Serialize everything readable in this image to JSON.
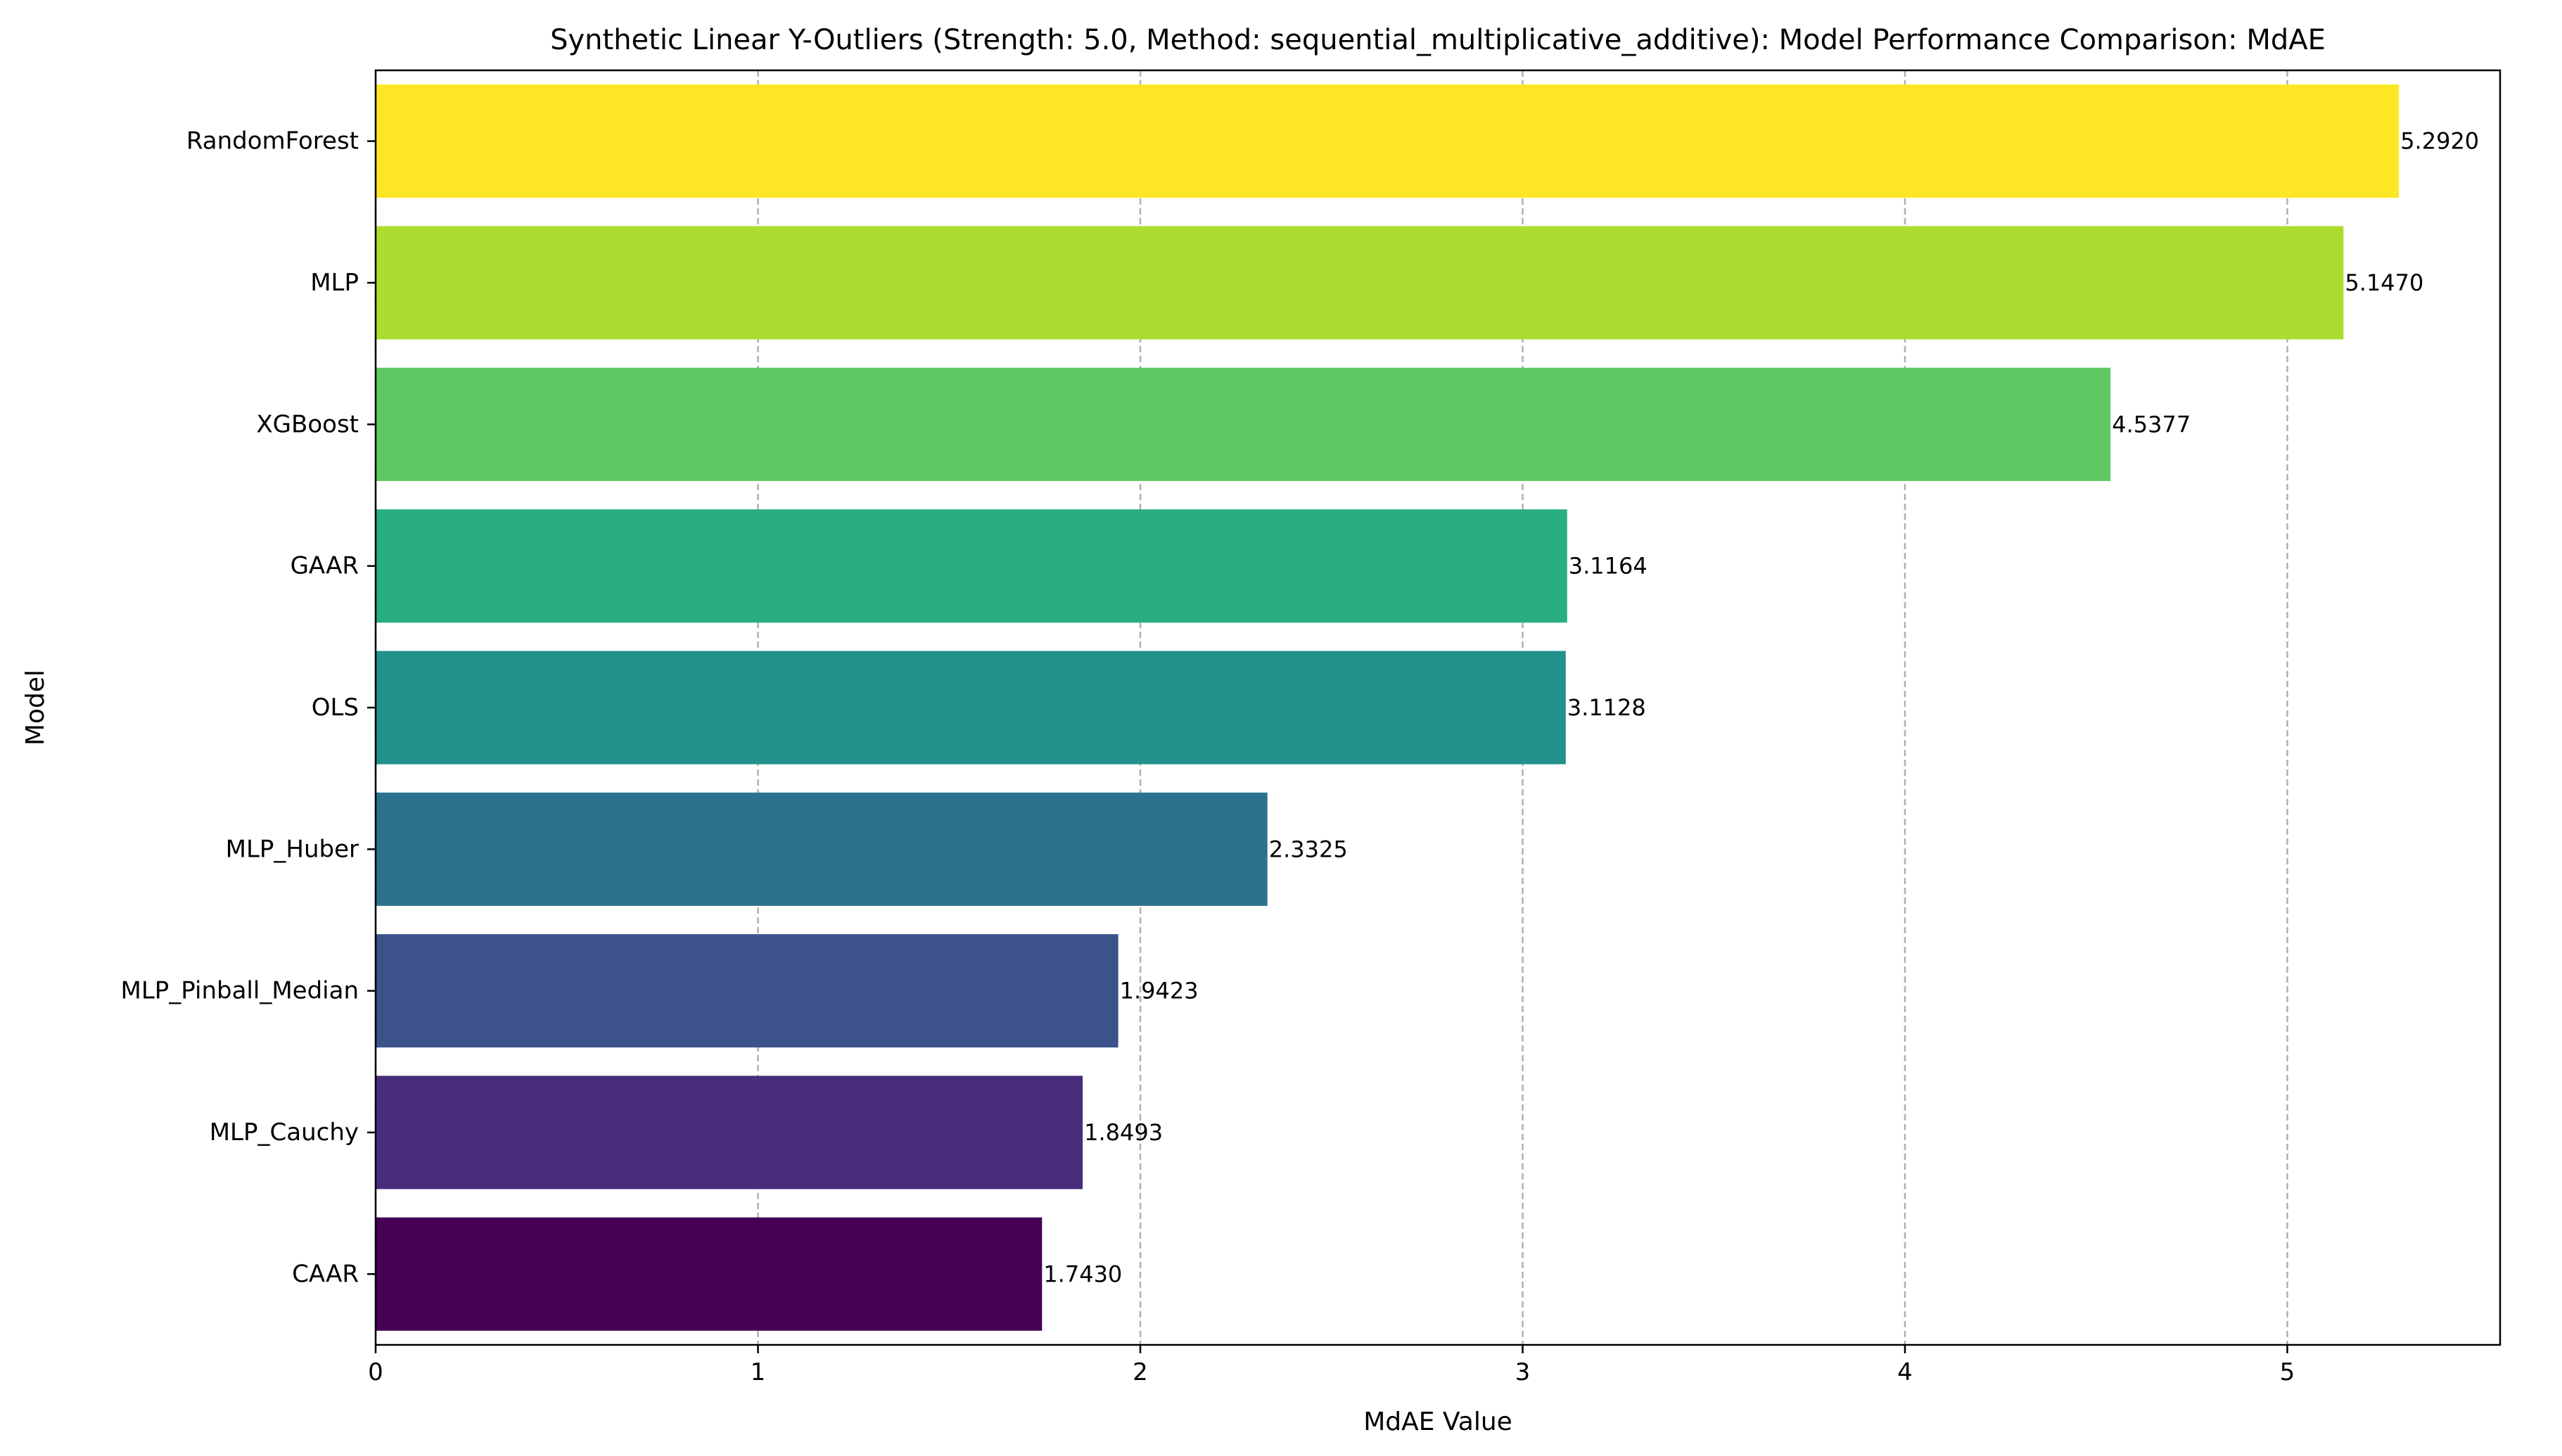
{
  "chart_data": {
    "type": "bar",
    "orientation": "horizontal",
    "title": "Synthetic Linear Y-Outliers (Strength: 5.0, Method: sequential_multiplicative_additive): Model Performance Comparison: MdAE",
    "xlabel": "MdAE Value",
    "ylabel": "Model",
    "xlim": [
      0,
      5.5566
    ],
    "xticks": [
      0,
      1,
      2,
      3,
      4,
      5
    ],
    "xtick_labels": [
      "0",
      "1",
      "2",
      "3",
      "4",
      "5"
    ],
    "grid": "x-axis dashed",
    "categories": [
      "RandomForest",
      "MLP",
      "XGBoost",
      "GAAR",
      "OLS",
      "MLP_Huber",
      "MLP_Pinball_Median",
      "MLP_Cauchy",
      "CAAR"
    ],
    "values": [
      5.292,
      5.147,
      4.5377,
      3.1164,
      3.1128,
      2.3325,
      1.9423,
      1.8493,
      1.743
    ],
    "value_labels": [
      "5.2920",
      "5.1470",
      "4.5377",
      "3.1164",
      "3.1128",
      "2.3325",
      "1.9423",
      "1.8493",
      "1.7430"
    ],
    "colors": [
      "#fde725",
      "#addc30",
      "#5ec962",
      "#28ae80",
      "#21918c",
      "#2c728e",
      "#3b528b",
      "#472d7b",
      "#440154"
    ]
  }
}
